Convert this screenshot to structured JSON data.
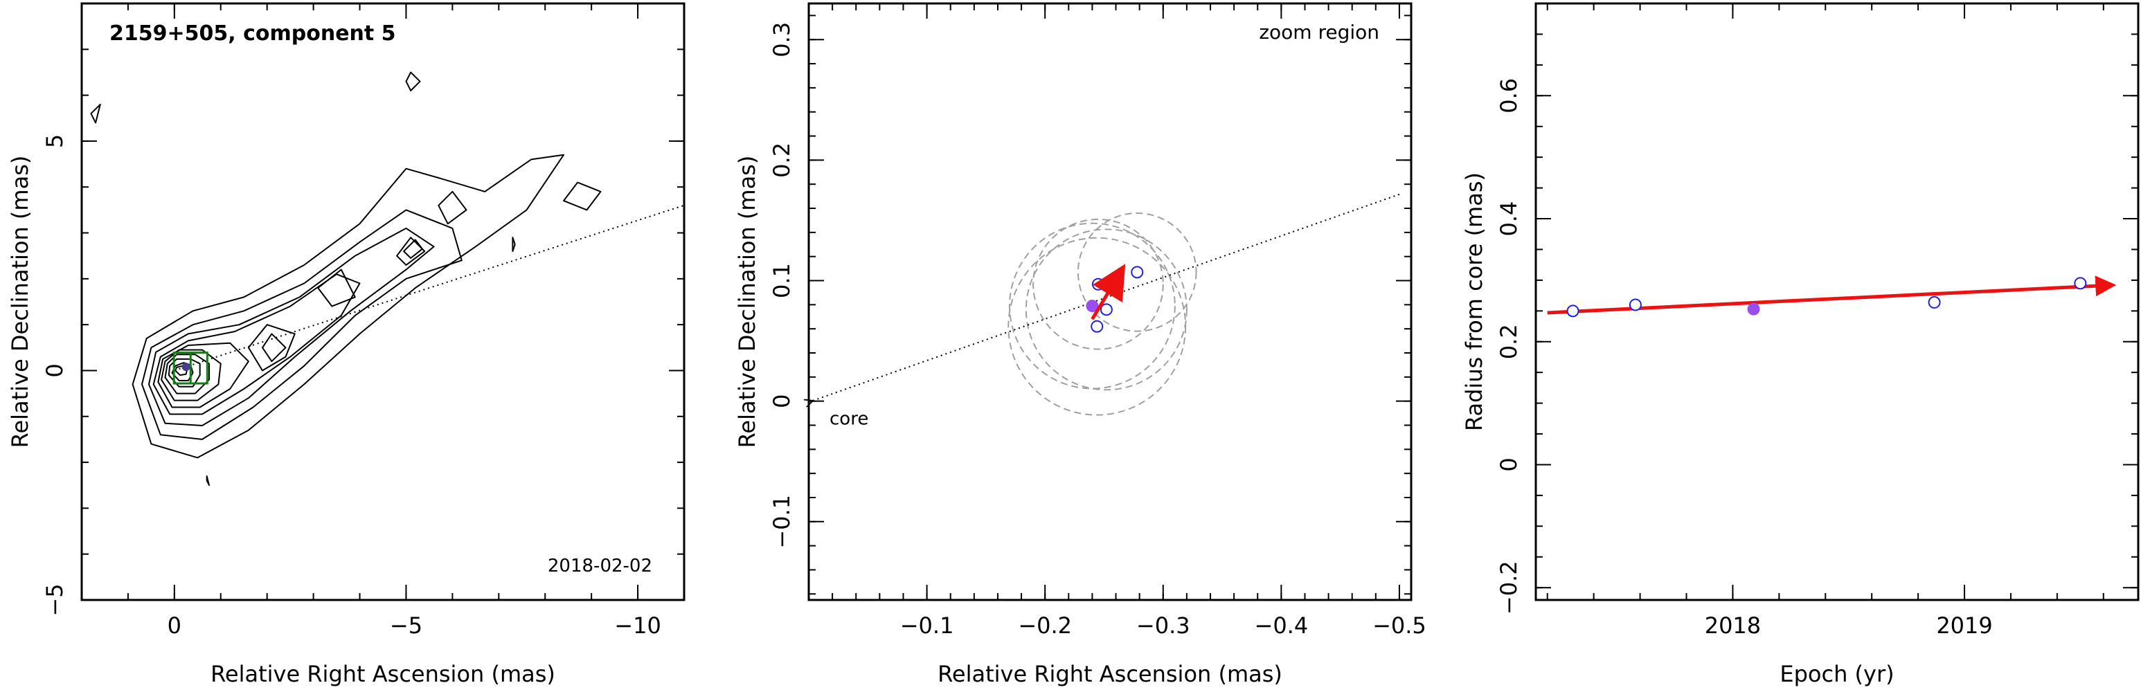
{
  "chart_data": [
    {
      "type": "contour",
      "panel": "jet-map",
      "title": "2159+505, component 5",
      "epoch_label": "2018-02-02",
      "xlabel": "Relative Right Ascension (mas)",
      "ylabel": "Relative Declination (mas)",
      "xlim": [
        2.0,
        -11.0
      ],
      "ylim": [
        -5.0,
        8.0
      ],
      "xticks": [
        0,
        -5,
        -10
      ],
      "yticks": [
        -5,
        0,
        5
      ],
      "x_tick_labels": [
        "0",
        "−5",
        "−10"
      ],
      "y_tick_labels": [
        "−5",
        "0",
        "5"
      ],
      "jet_axis_line": {
        "x": [
          0.0,
          -11.0
        ],
        "y": [
          0.0,
          3.6
        ]
      },
      "component": {
        "x": -0.25,
        "y": 0.08,
        "marker": "filled-circle",
        "color": "#4b3a8c"
      },
      "zoom_box": {
        "x": [
          -0.05,
          -0.5
        ],
        "y": [
          -0.16,
          0.33
        ],
        "color": "#1a7a1a"
      },
      "contours": [
        [
          [
            0.9,
            -0.3
          ],
          [
            0.5,
            -1.6
          ],
          [
            -0.5,
            -1.9
          ],
          [
            -1.6,
            -1.3
          ],
          [
            -2.8,
            -0.3
          ],
          [
            -4.0,
            0.8
          ],
          [
            -5.2,
            1.8
          ],
          [
            -6.5,
            2.7
          ],
          [
            -7.6,
            3.5
          ],
          [
            -8.4,
            4.7
          ],
          [
            -7.7,
            4.6
          ],
          [
            -6.7,
            3.9
          ],
          [
            -5.7,
            4.2
          ],
          [
            -5.0,
            4.4
          ],
          [
            -4.0,
            3.2
          ],
          [
            -2.8,
            2.3
          ],
          [
            -1.5,
            1.6
          ],
          [
            -0.4,
            1.3
          ],
          [
            0.6,
            0.7
          ],
          [
            0.9,
            -0.3
          ]
        ],
        [
          [
            0.7,
            -0.3
          ],
          [
            0.3,
            -1.4
          ],
          [
            -0.6,
            -1.5
          ],
          [
            -1.7,
            -0.8
          ],
          [
            -2.8,
            0.1
          ],
          [
            -3.9,
            1.2
          ],
          [
            -5.0,
            2.0
          ],
          [
            -6.2,
            2.4
          ],
          [
            -6.0,
            3.1
          ],
          [
            -5.0,
            3.5
          ],
          [
            -4.0,
            2.8
          ],
          [
            -2.8,
            1.9
          ],
          [
            -1.5,
            1.3
          ],
          [
            -0.4,
            1.0
          ],
          [
            0.5,
            0.5
          ],
          [
            0.7,
            -0.3
          ]
        ],
        [
          [
            0.55,
            -0.3
          ],
          [
            0.2,
            -1.15
          ],
          [
            -0.6,
            -1.2
          ],
          [
            -1.6,
            -0.6
          ],
          [
            -2.6,
            0.3
          ],
          [
            -3.8,
            1.3
          ],
          [
            -5.0,
            2.2
          ],
          [
            -5.6,
            2.7
          ],
          [
            -5.0,
            3.1
          ],
          [
            -3.9,
            2.5
          ],
          [
            -2.7,
            1.6
          ],
          [
            -1.4,
            1.0
          ],
          [
            -0.3,
            0.8
          ],
          [
            0.4,
            0.4
          ],
          [
            0.55,
            -0.3
          ]
        ],
        [
          [
            0.45,
            -0.3
          ],
          [
            0.1,
            -0.95
          ],
          [
            -0.6,
            -0.95
          ],
          [
            -1.5,
            -0.4
          ],
          [
            -2.5,
            0.3
          ],
          [
            -3.6,
            1.2
          ],
          [
            -4.0,
            1.9
          ],
          [
            -3.5,
            2.1
          ],
          [
            -2.5,
            1.4
          ],
          [
            -1.3,
            0.85
          ],
          [
            -0.3,
            0.65
          ],
          [
            0.3,
            0.3
          ],
          [
            0.45,
            -0.3
          ]
        ],
        [
          [
            0.35,
            -0.25
          ],
          [
            0.05,
            -0.8
          ],
          [
            -0.55,
            -0.8
          ],
          [
            -1.2,
            -0.4
          ],
          [
            -1.6,
            0.2
          ],
          [
            -1.2,
            0.6
          ],
          [
            -0.3,
            0.55
          ],
          [
            0.25,
            0.25
          ],
          [
            0.35,
            -0.25
          ]
        ],
        [
          [
            0.28,
            -0.2
          ],
          [
            0.0,
            -0.65
          ],
          [
            -0.5,
            -0.65
          ],
          [
            -0.95,
            -0.3
          ],
          [
            -1.0,
            0.15
          ],
          [
            -0.6,
            0.45
          ],
          [
            -0.1,
            0.45
          ],
          [
            0.2,
            0.2
          ],
          [
            0.28,
            -0.2
          ]
        ],
        [
          [
            0.2,
            -0.15
          ],
          [
            -0.05,
            -0.5
          ],
          [
            -0.45,
            -0.5
          ],
          [
            -0.75,
            -0.2
          ],
          [
            -0.75,
            0.15
          ],
          [
            -0.45,
            0.35
          ],
          [
            -0.05,
            0.35
          ],
          [
            0.15,
            0.15
          ],
          [
            0.2,
            -0.15
          ]
        ],
        [
          [
            0.12,
            -0.1
          ],
          [
            -0.1,
            -0.35
          ],
          [
            -0.4,
            -0.35
          ],
          [
            -0.55,
            -0.1
          ],
          [
            -0.55,
            0.15
          ],
          [
            -0.35,
            0.25
          ],
          [
            -0.05,
            0.25
          ],
          [
            0.1,
            0.1
          ],
          [
            0.12,
            -0.1
          ]
        ],
        [
          [
            0.05,
            -0.05
          ],
          [
            -0.1,
            -0.22
          ],
          [
            -0.3,
            -0.22
          ],
          [
            -0.4,
            -0.05
          ],
          [
            -0.35,
            0.12
          ],
          [
            -0.2,
            0.17
          ],
          [
            -0.02,
            0.1
          ],
          [
            0.05,
            -0.05
          ]
        ],
        [
          [
            -0.02,
            0.0
          ],
          [
            -0.12,
            -0.1
          ],
          [
            -0.25,
            -0.08
          ],
          [
            -0.28,
            0.05
          ],
          [
            -0.18,
            0.1
          ],
          [
            -0.05,
            0.07
          ],
          [
            -0.02,
            0.0
          ]
        ],
        [
          [
            -2.0,
            1.0
          ],
          [
            -1.6,
            0.5
          ],
          [
            -1.9,
            0.0
          ],
          [
            -2.4,
            0.3
          ],
          [
            -2.6,
            0.8
          ],
          [
            -2.0,
            1.0
          ]
        ],
        [
          [
            -2.1,
            0.8
          ],
          [
            -1.9,
            0.5
          ],
          [
            -2.1,
            0.2
          ],
          [
            -2.4,
            0.5
          ],
          [
            -2.1,
            0.8
          ]
        ],
        [
          [
            -3.6,
            2.2
          ],
          [
            -3.1,
            1.8
          ],
          [
            -3.4,
            1.4
          ],
          [
            -3.9,
            1.6
          ],
          [
            -3.6,
            2.2
          ]
        ],
        [
          [
            -5.1,
            2.9
          ],
          [
            -4.8,
            2.5
          ],
          [
            -5.0,
            2.3
          ],
          [
            -5.4,
            2.6
          ],
          [
            -5.1,
            2.9
          ]
        ],
        [
          [
            -5.2,
            2.85
          ],
          [
            -4.95,
            2.6
          ],
          [
            -5.1,
            2.45
          ],
          [
            -5.35,
            2.65
          ],
          [
            -5.2,
            2.85
          ]
        ],
        [
          [
            -6.0,
            3.9
          ],
          [
            -5.7,
            3.6
          ],
          [
            -5.9,
            3.2
          ],
          [
            -6.3,
            3.5
          ],
          [
            -6.0,
            3.9
          ]
        ],
        [
          [
            -8.7,
            4.1
          ],
          [
            -8.4,
            3.7
          ],
          [
            -8.9,
            3.5
          ],
          [
            -9.2,
            3.9
          ],
          [
            -8.7,
            4.1
          ]
        ],
        [
          [
            -5.0,
            6.3
          ],
          [
            -5.1,
            6.1
          ],
          [
            -5.3,
            6.3
          ],
          [
            -5.1,
            6.5
          ],
          [
            -5.0,
            6.3
          ]
        ],
        [
          [
            1.6,
            5.8
          ],
          [
            1.8,
            5.6
          ],
          [
            1.7,
            5.4
          ],
          [
            1.6,
            5.8
          ]
        ],
        [
          [
            -0.7,
            -2.3
          ],
          [
            -0.75,
            -2.5
          ],
          [
            -0.7,
            -2.4
          ],
          [
            -0.7,
            -2.3
          ]
        ],
        [
          [
            -7.3,
            2.6
          ],
          [
            -7.35,
            2.75
          ],
          [
            -7.3,
            2.9
          ],
          [
            -7.3,
            2.6
          ]
        ]
      ]
    },
    {
      "type": "scatter",
      "panel": "zoom",
      "annotation": "zoom region",
      "xlabel": "Relative Right Ascension (mas)",
      "ylabel": "Relative Declination (mas)",
      "xlim": [
        0.0,
        -0.51
      ],
      "ylim": [
        -0.165,
        0.33
      ],
      "xticks": [
        -0.1,
        -0.2,
        -0.3,
        -0.4,
        -0.5
      ],
      "yticks": [
        -0.1,
        0,
        0.1,
        0.2,
        0.3
      ],
      "x_tick_labels": [
        "−0.1",
        "−0.2",
        "−0.3",
        "−0.4",
        "−0.5"
      ],
      "y_tick_labels": [
        "−0.1",
        "0",
        "0.1",
        "0.2",
        "0.3"
      ],
      "core_label": "core",
      "core_arrow": {
        "x_from": -0.5,
        "y_from": 0.167,
        "x_to": 0.0,
        "y_to": 0.0
      },
      "points": [
        {
          "x": -0.245,
          "y": 0.097,
          "filled": false
        },
        {
          "x": -0.278,
          "y": 0.107,
          "filled": false
        },
        {
          "x": -0.252,
          "y": 0.076,
          "filled": false
        },
        {
          "x": -0.244,
          "y": 0.062,
          "filled": false
        },
        {
          "x": -0.24,
          "y": 0.079,
          "filled": true
        }
      ],
      "circles": [
        {
          "x": -0.245,
          "y": 0.097,
          "r": 0.055
        },
        {
          "x": -0.278,
          "y": 0.107,
          "r": 0.05
        },
        {
          "x": -0.252,
          "y": 0.076,
          "r": 0.068
        },
        {
          "x": -0.244,
          "y": 0.062,
          "r": 0.075
        },
        {
          "x": -0.24,
          "y": 0.079,
          "r": 0.07
        }
      ],
      "motion_arrow": {
        "x_from": -0.24,
        "y_from": 0.068,
        "x_to": -0.265,
        "y_to": 0.109
      },
      "colors": {
        "open": "#2020e0",
        "filled": "#9a4ef0",
        "arrow": "#ee1111",
        "circles": "#a0a0a0"
      }
    },
    {
      "type": "scatter",
      "panel": "radius-vs-epoch",
      "xlabel": "Epoch (yr)",
      "ylabel": "Radius from core (mas)",
      "xlim": [
        2017.15,
        2019.75
      ],
      "ylim": [
        -0.22,
        0.75
      ],
      "xticks": [
        2018,
        2019
      ],
      "yticks": [
        -0.2,
        0,
        0.2,
        0.4,
        0.6
      ],
      "x_tick_labels": [
        "2018",
        "2019"
      ],
      "y_tick_labels": [
        "−0.2",
        "0",
        "0.2",
        "0.4",
        "0.6"
      ],
      "points": [
        {
          "x": 2017.31,
          "y": 0.25,
          "filled": false
        },
        {
          "x": 2017.58,
          "y": 0.26,
          "filled": false
        },
        {
          "x": 2018.09,
          "y": 0.253,
          "filled": true
        },
        {
          "x": 2018.87,
          "y": 0.264,
          "filled": false
        },
        {
          "x": 2019.5,
          "y": 0.295,
          "filled": false
        }
      ],
      "trend_arrow": {
        "x_from": 2017.2,
        "y_from": 0.247,
        "x_to": 2019.7,
        "y_to": 0.292
      },
      "colors": {
        "open": "#2020e0",
        "filled": "#9a4ef0",
        "arrow": "#ee1111"
      }
    }
  ]
}
